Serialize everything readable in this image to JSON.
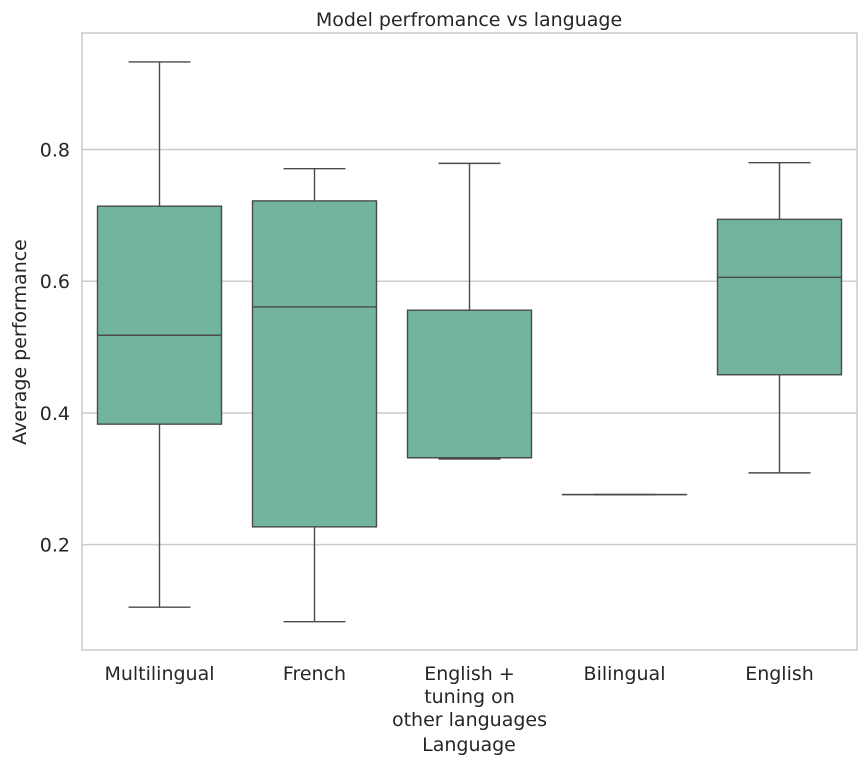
{
  "chart_data": {
    "type": "box",
    "title": "Model perfromance vs language",
    "xlabel": "Language",
    "ylabel": "Average performance",
    "ylim": [
      0.04,
      0.977
    ],
    "yticks": [
      "0.2",
      "0.4",
      "0.6",
      "0.8"
    ],
    "ytick_values": [
      0.2,
      0.4,
      0.6,
      0.8
    ],
    "grid": "horizontal",
    "box_color": "#73b4a0",
    "edge_color": "#4a4a4a",
    "grid_color": "#cccccc",
    "categories": [
      [
        "Multilingual"
      ],
      [
        "French"
      ],
      [
        "English +",
        "tuning on",
        "other languages"
      ],
      [
        "Bilingual"
      ],
      [
        "English"
      ]
    ],
    "boxes": [
      {
        "whisker_low": 0.105,
        "q1": 0.383,
        "median": 0.518,
        "q3": 0.714,
        "whisker_high": 0.933
      },
      {
        "whisker_low": 0.083,
        "q1": 0.227,
        "median": 0.561,
        "q3": 0.722,
        "whisker_high": 0.771
      },
      {
        "whisker_low": 0.33,
        "q1": 0.332,
        "median": 0.332,
        "q3": 0.556,
        "whisker_high": 0.779
      },
      {
        "whisker_low": 0.276,
        "q1": 0.276,
        "median": 0.276,
        "q3": 0.276,
        "whisker_high": 0.276
      },
      {
        "whisker_low": 0.309,
        "q1": 0.458,
        "median": 0.606,
        "q3": 0.694,
        "whisker_high": 0.78
      }
    ]
  }
}
